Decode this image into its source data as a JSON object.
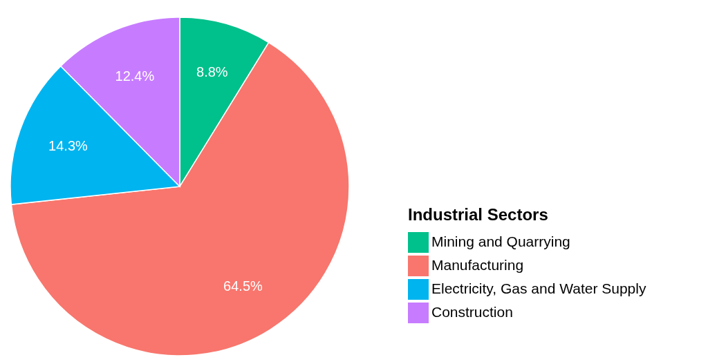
{
  "chart_data": {
    "type": "pie",
    "categories": [
      "Mining and Quarrying",
      "Manufacturing",
      "Electricity, Gas and Water Supply",
      "Construction"
    ],
    "values": [
      8.8,
      64.5,
      14.3,
      12.4
    ],
    "colors": [
      "#00c08b",
      "#f8766d",
      "#00b4ef",
      "#c77cff"
    ],
    "value_labels": [
      "8.8%",
      "64.5%",
      "14.3%",
      "12.4%"
    ],
    "legend_title": "Industrial Sectors",
    "legend": "bottom right"
  }
}
